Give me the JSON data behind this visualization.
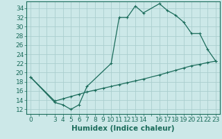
{
  "xlabel": "Humidex (Indice chaleur)",
  "bg_color": "#cce8e8",
  "line_color": "#1a6b5a",
  "grid_color": "#aacece",
  "xlim": [
    -0.5,
    23.5
  ],
  "ylim": [
    11,
    35.5
  ],
  "xticks_labeled": [
    0,
    3,
    4,
    5,
    6,
    7,
    8,
    9,
    10,
    11,
    12,
    13,
    14,
    16,
    17,
    18,
    19,
    20,
    21,
    22,
    23
  ],
  "xticks_all": [
    0,
    1,
    2,
    3,
    4,
    5,
    6,
    7,
    8,
    9,
    10,
    11,
    12,
    13,
    14,
    15,
    16,
    17,
    18,
    19,
    20,
    21,
    22,
    23
  ],
  "yticks": [
    12,
    14,
    16,
    18,
    20,
    22,
    24,
    26,
    28,
    30,
    32,
    34
  ],
  "curve1_x": [
    0,
    3,
    4,
    5,
    6,
    7,
    10,
    11,
    12,
    13,
    14,
    16,
    17,
    18,
    19,
    20,
    21,
    22,
    23
  ],
  "curve1_y": [
    19,
    13.5,
    13,
    12,
    13,
    17,
    22,
    32,
    32,
    34.5,
    33,
    35,
    33.5,
    32.5,
    31,
    28.5,
    28.5,
    25,
    22.5
  ],
  "curve2_x": [
    0,
    3,
    4,
    5,
    6,
    7,
    8,
    9,
    10,
    11,
    12,
    13,
    14,
    16,
    17,
    18,
    19,
    20,
    21,
    22,
    23
  ],
  "curve2_y": [
    19,
    13.8,
    14.3,
    14.8,
    15.3,
    15.8,
    16.2,
    16.6,
    17.0,
    17.4,
    17.8,
    18.2,
    18.6,
    19.5,
    20.0,
    20.5,
    21.0,
    21.5,
    21.8,
    22.2,
    22.5
  ],
  "tick_fontsize": 6.5,
  "xlabel_fontsize": 7.5,
  "marker": "+"
}
